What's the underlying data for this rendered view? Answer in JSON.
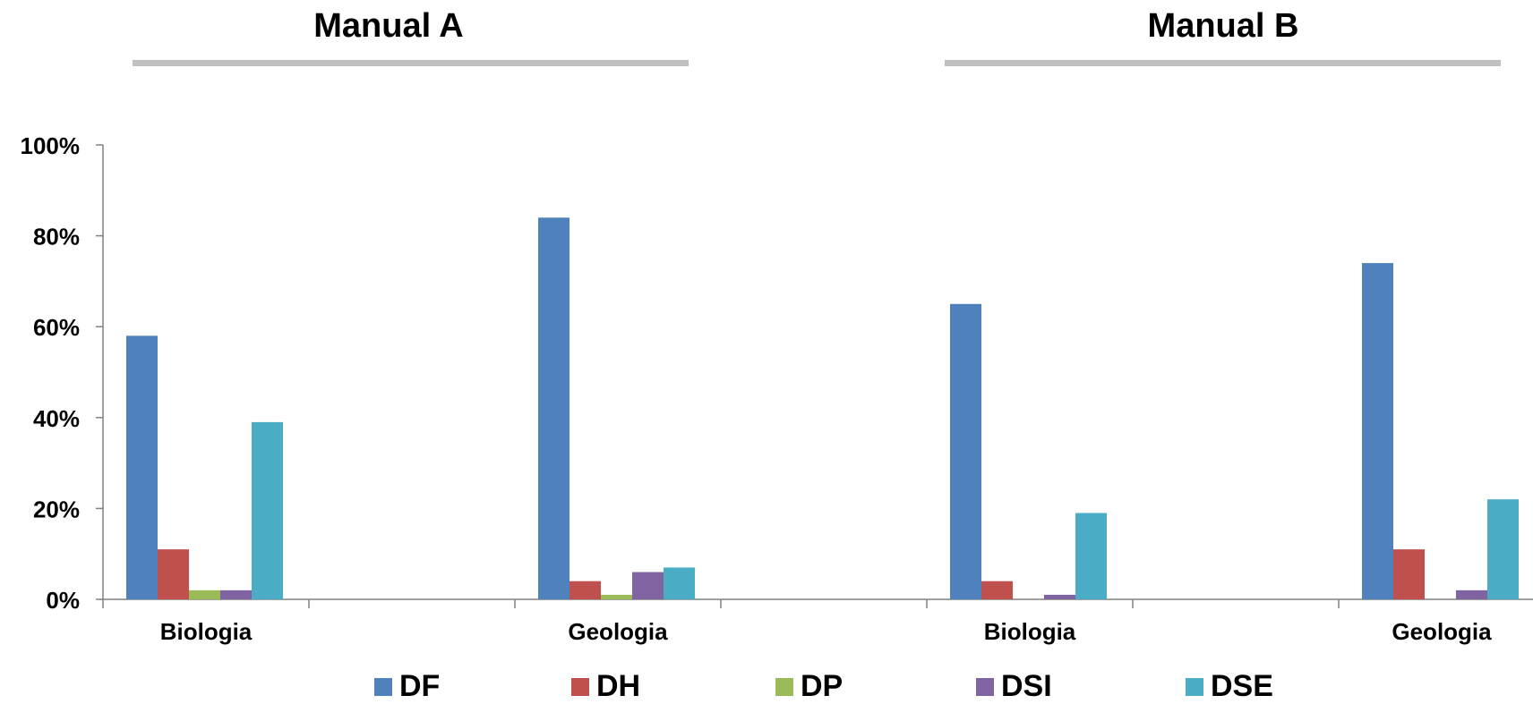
{
  "chart_data": {
    "type": "bar",
    "groups": [
      {
        "title": "Manual A",
        "categories": [
          "Biologia",
          "Geologia"
        ]
      },
      {
        "title": "Manual B",
        "categories": [
          "Biologia",
          "Geologia"
        ]
      }
    ],
    "categories": [
      "Biologia",
      "Geologia",
      "Biologia",
      "Geologia"
    ],
    "series": [
      {
        "name": "DF",
        "color": "#4F81BD",
        "values": [
          58,
          84,
          65,
          74
        ]
      },
      {
        "name": "DH",
        "color": "#C0504D",
        "values": [
          11,
          4,
          4,
          11
        ]
      },
      {
        "name": "DP",
        "color": "#9BBB59",
        "values": [
          2,
          1,
          0,
          0
        ]
      },
      {
        "name": "DSI",
        "color": "#8064A2",
        "values": [
          2,
          6,
          1,
          2
        ]
      },
      {
        "name": "DSE",
        "color": "#4BACC6",
        "values": [
          39,
          7,
          19,
          22
        ]
      }
    ],
    "ylim": [
      0,
      100
    ],
    "yticks": [
      "0%",
      "20%",
      "40%",
      "60%",
      "80%",
      "100%"
    ],
    "xlabel": "",
    "ylabel": "",
    "legend": "bottom",
    "grid": false
  }
}
